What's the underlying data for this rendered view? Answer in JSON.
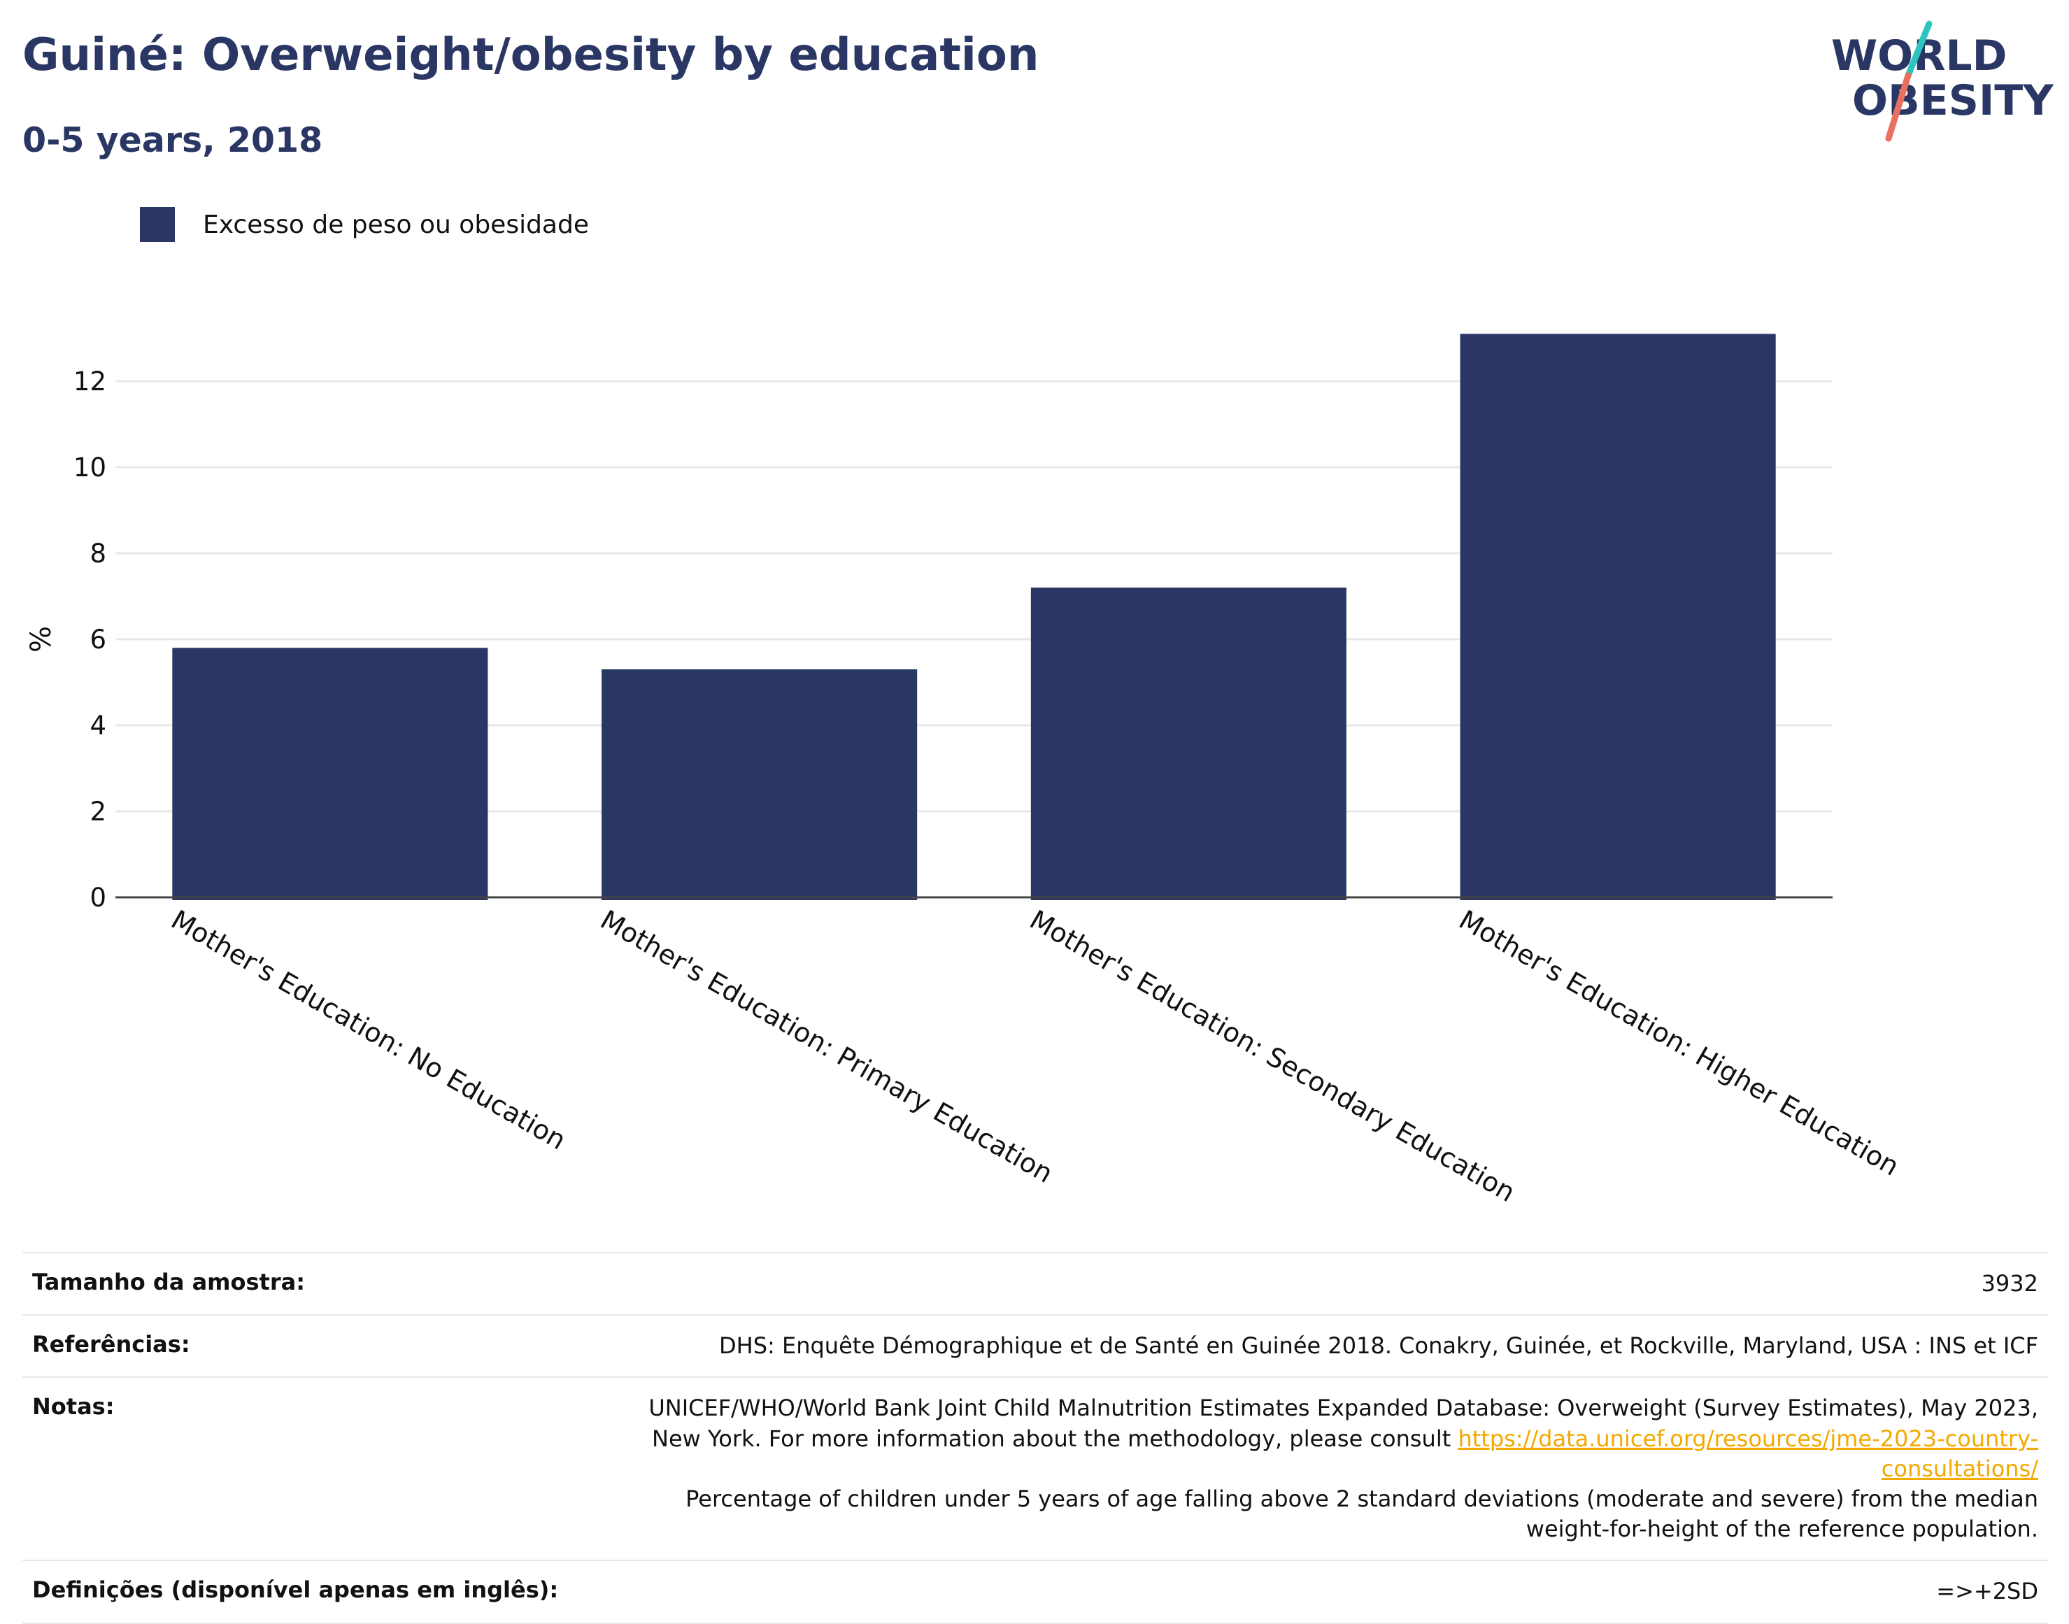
{
  "header": {
    "title": "Guiné: Overweight/obesity by education",
    "subtitle": "0-5 years, 2018",
    "logo_line1": "WORLD",
    "logo_line2": "OBESITY"
  },
  "colors": {
    "bar": "#2a3663",
    "title": "#2a3663",
    "link": "#f2a900",
    "logo_teal": "#2ec4c0",
    "logo_coral": "#e8705f"
  },
  "chart_data": {
    "type": "bar",
    "categories": [
      "Mother's Education: No Education",
      "Mother's Education: Primary Education",
      "Mother's Education: Secondary Education",
      "Mother's Education: Higher Education"
    ],
    "series": [
      {
        "name": "Excesso de peso ou obesidade",
        "values": [
          5.8,
          5.3,
          7.2,
          13.1
        ]
      }
    ],
    "xlabel": "",
    "ylabel": "%",
    "ylim": [
      0,
      14
    ],
    "yticks": [
      0,
      2,
      4,
      6,
      8,
      10,
      12
    ],
    "grid": true,
    "legend": "top-left"
  },
  "meta": {
    "sample_label": "Tamanho da amostra:",
    "sample_value": "3932",
    "refs_label": "Referências:",
    "refs_value": "DHS: Enquête Démographique et de Santé en Guinée 2018. Conakry, Guinée, et Rockville, Maryland, USA : INS et ICF",
    "notes_label": "Notas:",
    "notes_text1": "UNICEF/WHO/World Bank Joint Child Malnutrition Estimates Expanded Database: Overweight (Survey Estimates), May 2023, New York. For more information about the methodology, please consult",
    "notes_link": "https://data.unicef.org/resources/jme-2023-country-consultations/",
    "notes_text2": "Percentage of children under 5 years of age falling above 2 standard deviations (moderate and severe) from the median weight-for-height of the reference population.",
    "defs_label": "Definições (disponível apenas em inglês):",
    "defs_value": "=>+2SD"
  }
}
